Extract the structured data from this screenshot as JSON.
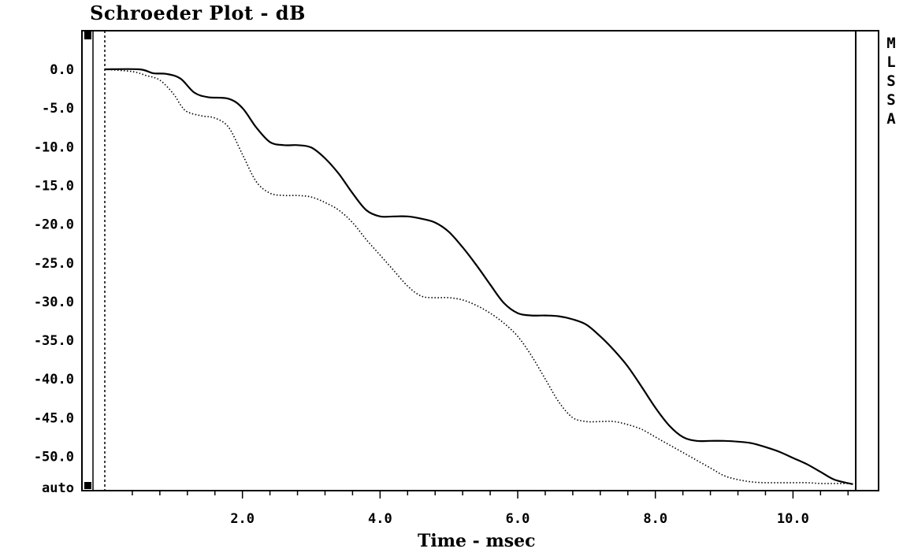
{
  "chart_data": {
    "type": "line",
    "title": "Schroeder Plot - dB",
    "xlabel": "Time - msec",
    "ylabel": "",
    "xlim": [
      0.0,
      10.9
    ],
    "ylim": [
      -53.6,
      5.0
    ],
    "x_ticks": [
      2.0,
      4.0,
      6.0,
      8.0,
      10.0
    ],
    "x_tick_labels": [
      "2.0",
      "4.0",
      "6.0",
      "8.0",
      "10.0"
    ],
    "x_minor_step": 0.4,
    "y_ticks": [
      0.0,
      -5.0,
      -10.0,
      -15.0,
      -20.0,
      -25.0,
      -30.0,
      -35.0,
      -40.0,
      -45.0,
      -50.0
    ],
    "y_tick_labels": [
      "0.0",
      "-5.0",
      "-10.0",
      "-15.0",
      "-20.0",
      "-25.0",
      "-30.0",
      "-35.0",
      "-40.0",
      "-45.0",
      "-50.0"
    ],
    "y_bottom_label": "auto",
    "grid": false,
    "series": [
      {
        "style": "solid",
        "color": "#000000",
        "x": [
          0.0,
          0.5,
          0.7,
          0.9,
          1.1,
          1.3,
          1.5,
          1.8,
          2.0,
          2.2,
          2.4,
          2.6,
          2.8,
          3.0,
          3.2,
          3.4,
          3.6,
          3.8,
          4.0,
          4.2,
          4.4,
          4.6,
          4.8,
          5.0,
          5.2,
          5.4,
          5.6,
          5.8,
          6.0,
          6.2,
          6.4,
          6.6,
          6.8,
          7.0,
          7.2,
          7.4,
          7.6,
          7.8,
          8.0,
          8.2,
          8.4,
          8.6,
          8.8,
          9.0,
          9.2,
          9.4,
          9.6,
          9.8,
          10.0,
          10.2,
          10.4,
          10.6,
          10.87
        ],
        "y": [
          0.0,
          0.0,
          -0.5,
          -0.6,
          -1.2,
          -3.0,
          -3.6,
          -3.8,
          -5.0,
          -7.5,
          -9.4,
          -9.8,
          -9.8,
          -10.1,
          -11.5,
          -13.5,
          -16.0,
          -18.2,
          -19.0,
          -19.0,
          -19.0,
          -19.3,
          -19.8,
          -21.0,
          -23.0,
          -25.3,
          -27.8,
          -30.2,
          -31.5,
          -31.8,
          -31.8,
          -31.9,
          -32.3,
          -33.0,
          -34.5,
          -36.3,
          -38.4,
          -41.0,
          -43.7,
          -46.0,
          -47.5,
          -48.0,
          -48.0,
          -48.0,
          -48.1,
          -48.3,
          -48.8,
          -49.4,
          -50.2,
          -51.0,
          -52.0,
          -53.0,
          -53.6
        ]
      },
      {
        "style": "dotted",
        "color": "#000000",
        "x": [
          0.0,
          0.4,
          0.6,
          0.8,
          1.0,
          1.1,
          1.2,
          1.4,
          1.6,
          1.8,
          2.0,
          2.2,
          2.4,
          2.6,
          2.8,
          3.0,
          3.2,
          3.4,
          3.6,
          3.8,
          4.0,
          4.2,
          4.4,
          4.6,
          4.8,
          5.0,
          5.2,
          5.4,
          5.6,
          5.8,
          6.0,
          6.2,
          6.4,
          6.6,
          6.8,
          7.0,
          7.2,
          7.4,
          7.6,
          7.8,
          8.0,
          8.2,
          8.4,
          8.6,
          8.8,
          9.0,
          9.2,
          9.4,
          9.6,
          9.8,
          10.0,
          10.2,
          10.4,
          10.6,
          10.87
        ],
        "y": [
          0.0,
          -0.3,
          -0.8,
          -1.4,
          -3.2,
          -4.6,
          -5.5,
          -6.0,
          -6.3,
          -7.5,
          -11.0,
          -14.5,
          -16.0,
          -16.3,
          -16.3,
          -16.5,
          -17.2,
          -18.2,
          -19.8,
          -22.0,
          -24.0,
          -26.0,
          -28.0,
          -29.3,
          -29.5,
          -29.5,
          -29.8,
          -30.5,
          -31.5,
          -32.8,
          -34.5,
          -37.0,
          -40.0,
          -43.0,
          -45.0,
          -45.5,
          -45.5,
          -45.5,
          -45.9,
          -46.5,
          -47.5,
          -48.5,
          -49.5,
          -50.5,
          -51.5,
          -52.5,
          -53.0,
          -53.3,
          -53.4,
          -53.4,
          -53.4,
          -53.4,
          -53.5,
          -53.5,
          -53.5
        ]
      }
    ]
  },
  "side_labels": [
    "M",
    "L",
    "S",
    "S",
    "A"
  ]
}
